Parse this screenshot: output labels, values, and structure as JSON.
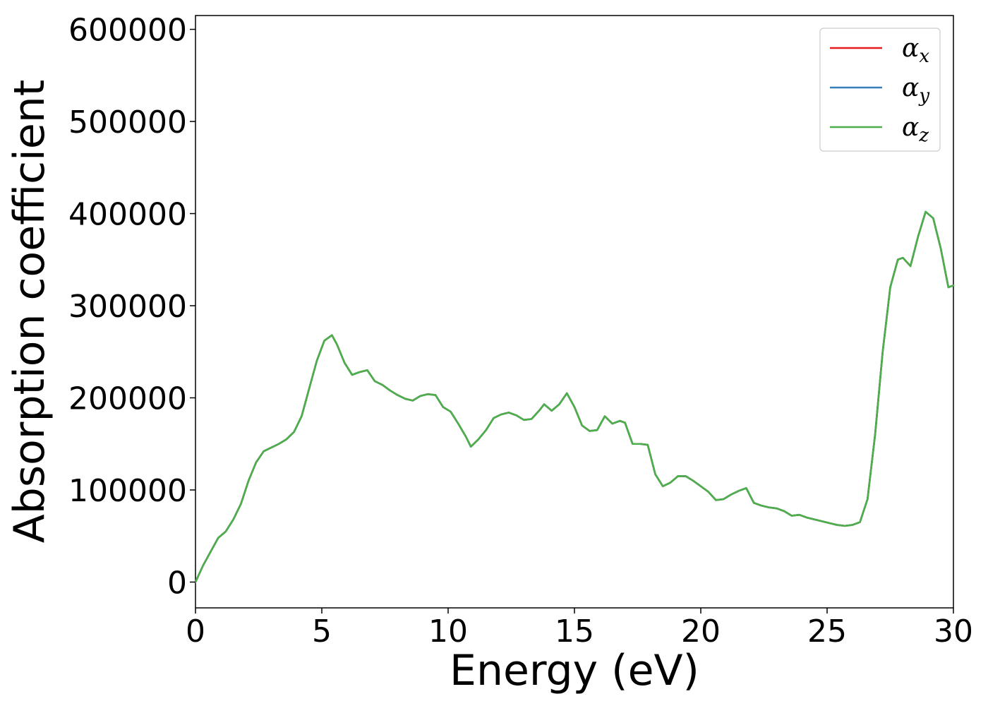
{
  "chart_data": {
    "type": "line",
    "title": "",
    "xlabel": "Energy (eV)",
    "ylabel": "Absorption coefficient",
    "xlim": [
      0,
      30
    ],
    "ylim": [
      -28000,
      615000
    ],
    "xticks": [
      0,
      5,
      10,
      15,
      20,
      25,
      30
    ],
    "yticks": [
      0,
      100000,
      200000,
      300000,
      400000,
      500000,
      600000
    ],
    "grid": false,
    "legend_position": "top-right",
    "x": [
      0,
      0.3,
      0.6,
      0.9,
      1.2,
      1.5,
      1.8,
      2.1,
      2.4,
      2.7,
      3.0,
      3.3,
      3.6,
      3.9,
      4.2,
      4.5,
      4.8,
      5.1,
      5.4,
      5.6,
      5.9,
      6.2,
      6.5,
      6.8,
      7.1,
      7.4,
      7.7,
      8.0,
      8.3,
      8.6,
      8.9,
      9.2,
      9.5,
      9.8,
      10.1,
      10.4,
      10.7,
      10.9,
      11.2,
      11.5,
      11.8,
      12.1,
      12.4,
      12.7,
      13.0,
      13.3,
      13.6,
      13.8,
      14.1,
      14.4,
      14.7,
      15.0,
      15.3,
      15.6,
      15.9,
      16.2,
      16.5,
      16.8,
      17.0,
      17.3,
      17.6,
      17.9,
      18.2,
      18.5,
      18.8,
      19.1,
      19.4,
      19.7,
      20.0,
      20.3,
      20.6,
      20.9,
      21.2,
      21.5,
      21.8,
      22.1,
      22.4,
      22.7,
      23.0,
      23.3,
      23.6,
      23.9,
      24.2,
      24.5,
      24.8,
      25.1,
      25.4,
      25.7,
      26.0,
      26.3,
      26.6,
      26.9,
      27.2,
      27.5,
      27.8,
      28.0,
      28.3,
      28.6,
      28.9,
      29.2,
      29.5,
      29.8,
      30.0
    ],
    "series": [
      {
        "name": "α_x",
        "label_base": "α",
        "label_sub": "x",
        "color": "#e41a1c",
        "values": [
          0,
          18000,
          33000,
          48000,
          55000,
          68000,
          85000,
          110000,
          130000,
          142000,
          146000,
          150000,
          155000,
          163000,
          180000,
          210000,
          240000,
          262000,
          268000,
          258000,
          238000,
          225000,
          228000,
          230000,
          218000,
          214000,
          208000,
          203000,
          199000,
          197000,
          202000,
          204000,
          203000,
          190000,
          185000,
          172000,
          158000,
          147000,
          155000,
          165000,
          178000,
          182000,
          184000,
          181000,
          176000,
          177000,
          186000,
          193000,
          186000,
          193000,
          205000,
          190000,
          170000,
          164000,
          165000,
          180000,
          172000,
          175000,
          173000,
          150000,
          150000,
          149000,
          117000,
          104000,
          108000,
          115000,
          115000,
          110000,
          104000,
          98000,
          89000,
          90000,
          95000,
          99000,
          102000,
          86000,
          83000,
          81000,
          80000,
          77000,
          72000,
          73000,
          70000,
          68000,
          66000,
          64000,
          62000,
          61000,
          62000,
          65000,
          90000,
          160000,
          250000,
          320000,
          350000,
          352000,
          343000,
          375000,
          402000,
          395000,
          362000,
          320000,
          322000
        ]
      },
      {
        "name": "α_y",
        "label_base": "α",
        "label_sub": "y",
        "color": "#377eb8",
        "values": [
          0,
          18000,
          33000,
          48000,
          55000,
          68000,
          85000,
          110000,
          130000,
          142000,
          146000,
          150000,
          155000,
          163000,
          180000,
          210000,
          240000,
          262000,
          268000,
          258000,
          238000,
          225000,
          228000,
          230000,
          218000,
          214000,
          208000,
          203000,
          199000,
          197000,
          202000,
          204000,
          203000,
          190000,
          185000,
          172000,
          158000,
          147000,
          155000,
          165000,
          178000,
          182000,
          184000,
          181000,
          176000,
          177000,
          186000,
          193000,
          186000,
          193000,
          205000,
          190000,
          170000,
          164000,
          165000,
          180000,
          172000,
          175000,
          173000,
          150000,
          150000,
          149000,
          117000,
          104000,
          108000,
          115000,
          115000,
          110000,
          104000,
          98000,
          89000,
          90000,
          95000,
          99000,
          102000,
          86000,
          83000,
          81000,
          80000,
          77000,
          72000,
          73000,
          70000,
          68000,
          66000,
          64000,
          62000,
          61000,
          62000,
          65000,
          90000,
          160000,
          250000,
          320000,
          350000,
          352000,
          343000,
          375000,
          402000,
          395000,
          362000,
          320000,
          322000
        ]
      },
      {
        "name": "α_z",
        "label_base": "α",
        "label_sub": "z",
        "color": "#4daf4a",
        "values": [
          0,
          18000,
          33000,
          48000,
          55000,
          68000,
          85000,
          110000,
          130000,
          142000,
          146000,
          150000,
          155000,
          163000,
          180000,
          210000,
          240000,
          262000,
          268000,
          258000,
          238000,
          225000,
          228000,
          230000,
          218000,
          214000,
          208000,
          203000,
          199000,
          197000,
          202000,
          204000,
          203000,
          190000,
          185000,
          172000,
          158000,
          147000,
          155000,
          165000,
          178000,
          182000,
          184000,
          181000,
          176000,
          177000,
          186000,
          193000,
          186000,
          193000,
          205000,
          190000,
          170000,
          164000,
          165000,
          180000,
          172000,
          175000,
          173000,
          150000,
          150000,
          149000,
          117000,
          104000,
          108000,
          115000,
          115000,
          110000,
          104000,
          98000,
          89000,
          90000,
          95000,
          99000,
          102000,
          86000,
          83000,
          81000,
          80000,
          77000,
          72000,
          73000,
          70000,
          68000,
          66000,
          64000,
          62000,
          61000,
          62000,
          65000,
          90000,
          160000,
          250000,
          320000,
          350000,
          352000,
          343000,
          375000,
          402000,
          395000,
          362000,
          320000,
          322000
        ]
      }
    ]
  }
}
